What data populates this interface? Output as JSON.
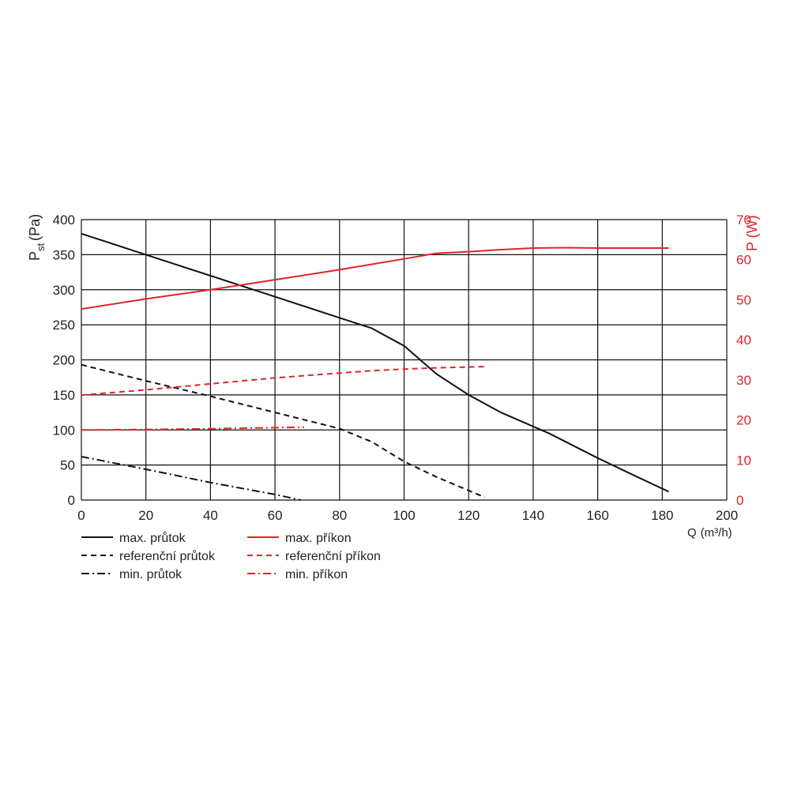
{
  "chart_data": {
    "type": "line",
    "x_axis": {
      "label": "Q",
      "unit": "(m³/h)",
      "range": [
        0,
        200
      ],
      "ticks": [
        0,
        20,
        40,
        60,
        80,
        100,
        120,
        140,
        160,
        180,
        200
      ]
    },
    "y_left": {
      "label": "P",
      "subscript": "st",
      "unit": "(Pa)",
      "range": [
        0,
        400
      ],
      "ticks": [
        0,
        50,
        100,
        150,
        200,
        250,
        300,
        350,
        400
      ],
      "color": "#222222"
    },
    "y_right": {
      "label": "P (W)",
      "range": [
        0,
        70
      ],
      "ticks": [
        0,
        10,
        20,
        30,
        40,
        50,
        60,
        70
      ],
      "color": "#e0242b"
    },
    "grid": true,
    "legend_placement": "bottom-left",
    "series": [
      {
        "name": "max. průtok",
        "axis": "left",
        "color": "#111111",
        "dash": "solid",
        "x": [
          0,
          20,
          40,
          50,
          60,
          80,
          90,
          100,
          110,
          120,
          130,
          145,
          160,
          170,
          182
        ],
        "y": [
          380,
          350,
          320,
          305,
          290,
          260,
          245,
          220,
          180,
          150,
          125,
          95,
          60,
          38,
          12
        ]
      },
      {
        "name": "referenční průtok",
        "axis": "left",
        "color": "#111111",
        "dash": "dashed",
        "x": [
          0,
          20,
          40,
          60,
          80,
          90,
          100,
          110,
          125
        ],
        "y": [
          193,
          170,
          148,
          125,
          102,
          83,
          55,
          33,
          4
        ]
      },
      {
        "name": "min. průtok",
        "axis": "left",
        "color": "#111111",
        "dash": "dashdot",
        "x": [
          0,
          20,
          40,
          60,
          68
        ],
        "y": [
          62,
          44,
          25,
          8,
          0
        ]
      },
      {
        "name": "max. příkon",
        "axis": "right",
        "color": "#e0242b",
        "dash": "solid",
        "x": [
          0,
          20,
          40,
          60,
          80,
          100,
          110,
          120,
          130,
          140,
          150,
          160,
          170,
          182
        ],
        "y": [
          47.7,
          50.2,
          52.5,
          55,
          57.5,
          60.2,
          61.6,
          62,
          62.5,
          62.9,
          63,
          62.9,
          62.9,
          62.9
        ]
      },
      {
        "name": "referenční příkon",
        "axis": "right",
        "color": "#e0242b",
        "dash": "dashed",
        "x": [
          0,
          20,
          40,
          60,
          80,
          90,
          100,
          110,
          125
        ],
        "y": [
          26.2,
          27.5,
          29,
          30.5,
          31.7,
          32.3,
          32.7,
          33,
          33.3
        ]
      },
      {
        "name": "min. příkon",
        "axis": "right",
        "color": "#e0242b",
        "dash": "dashdot",
        "x": [
          0,
          20,
          40,
          69
        ],
        "y": [
          17.5,
          17.6,
          17.8,
          18.2
        ]
      }
    ]
  }
}
